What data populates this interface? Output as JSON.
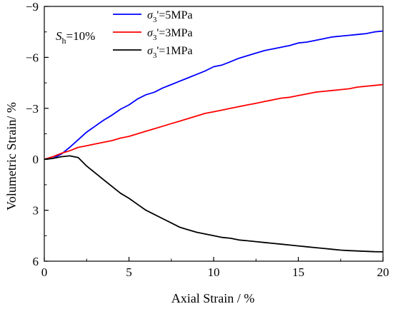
{
  "chart_data": {
    "type": "line",
    "xlabel": "Axial Strain / %",
    "ylabel": "Volumetric Strain/ %",
    "xlim": [
      0,
      20
    ],
    "ylim": [
      6,
      -9
    ],
    "y_axis_inverted": true,
    "xticks": [
      0,
      5,
      10,
      15,
      20
    ],
    "yticks": [
      -9,
      -6,
      -3,
      0,
      3,
      6
    ],
    "xtick_labels": [
      "0",
      "5",
      "10",
      "15",
      "20"
    ],
    "ytick_labels": [
      "−9",
      "−6",
      "−3",
      "0",
      "3",
      "6"
    ],
    "grid": false,
    "legend_position": "top-center",
    "annotation": {
      "symbol": "S",
      "subscript": "h",
      "text": "=10%"
    },
    "series": [
      {
        "name": "σ3'=5MPa",
        "name_parts": {
          "symbol": "σ",
          "subscript": "3",
          "suffix": "'=5MPa"
        },
        "color": "#0000ff",
        "x": [
          0,
          0.5,
          1,
          1.5,
          2,
          2.5,
          3,
          3.5,
          4,
          4.5,
          5,
          5.5,
          6,
          6.5,
          7,
          7.5,
          8,
          8.5,
          9,
          9.5,
          10,
          10.5,
          11,
          11.5,
          12,
          12.5,
          13,
          13.5,
          14,
          14.5,
          15,
          15.5,
          16,
          16.5,
          17,
          17.5,
          18,
          18.5,
          19,
          19.5,
          20
        ],
        "y": [
          0,
          -0.05,
          -0.3,
          -0.7,
          -1.15,
          -1.6,
          -1.95,
          -2.3,
          -2.6,
          -2.95,
          -3.2,
          -3.55,
          -3.8,
          -3.95,
          -4.2,
          -4.4,
          -4.6,
          -4.8,
          -5.0,
          -5.2,
          -5.45,
          -5.55,
          -5.75,
          -5.95,
          -6.1,
          -6.25,
          -6.4,
          -6.5,
          -6.6,
          -6.7,
          -6.85,
          -6.9,
          -7.0,
          -7.1,
          -7.2,
          -7.25,
          -7.3,
          -7.35,
          -7.4,
          -7.5,
          -7.55
        ]
      },
      {
        "name": "σ3'=3MPa",
        "name_parts": {
          "symbol": "σ",
          "subscript": "3",
          "suffix": "'=3MPa"
        },
        "color": "#ff0000",
        "x": [
          0,
          0.5,
          1,
          1.5,
          2,
          2.5,
          3,
          3.5,
          4,
          4.5,
          5,
          5.5,
          6,
          6.5,
          7,
          7.5,
          8,
          8.5,
          9,
          9.5,
          10,
          10.5,
          11,
          11.5,
          12,
          12.5,
          13,
          13.5,
          14,
          14.5,
          15,
          15.5,
          16,
          16.5,
          17,
          17.5,
          18,
          18.5,
          19,
          19.5,
          20
        ],
        "y": [
          0,
          -0.15,
          -0.35,
          -0.5,
          -0.7,
          -0.8,
          -0.9,
          -1.0,
          -1.1,
          -1.25,
          -1.35,
          -1.5,
          -1.65,
          -1.8,
          -1.95,
          -2.1,
          -2.25,
          -2.4,
          -2.55,
          -2.7,
          -2.8,
          -2.9,
          -3.0,
          -3.1,
          -3.2,
          -3.3,
          -3.4,
          -3.5,
          -3.6,
          -3.65,
          -3.75,
          -3.85,
          -3.95,
          -4.0,
          -4.05,
          -4.1,
          -4.15,
          -4.25,
          -4.3,
          -4.35,
          -4.4
        ]
      },
      {
        "name": "σ3'=1MPa",
        "name_parts": {
          "symbol": "σ",
          "subscript": "3",
          "suffix": "'=1MPa"
        },
        "color": "#000000",
        "x": [
          0,
          0.5,
          1,
          1.5,
          2,
          2.5,
          3,
          3.5,
          4,
          4.5,
          5,
          5.5,
          6,
          6.5,
          7,
          7.5,
          8,
          8.5,
          9,
          9.5,
          10,
          10.5,
          11,
          11.5,
          12,
          12.5,
          13,
          13.5,
          14,
          14.5,
          15,
          15.5,
          16,
          16.5,
          17,
          17.5,
          18,
          18.5,
          19,
          19.5,
          20
        ],
        "y": [
          0,
          -0.05,
          -0.15,
          -0.2,
          -0.1,
          0.4,
          0.8,
          1.2,
          1.6,
          2.0,
          2.3,
          2.65,
          3.0,
          3.25,
          3.5,
          3.75,
          4.0,
          4.15,
          4.3,
          4.4,
          4.5,
          4.6,
          4.65,
          4.75,
          4.8,
          4.85,
          4.9,
          4.95,
          5.0,
          5.05,
          5.1,
          5.15,
          5.2,
          5.25,
          5.3,
          5.35,
          5.38,
          5.4,
          5.42,
          5.44,
          5.45
        ]
      }
    ]
  }
}
